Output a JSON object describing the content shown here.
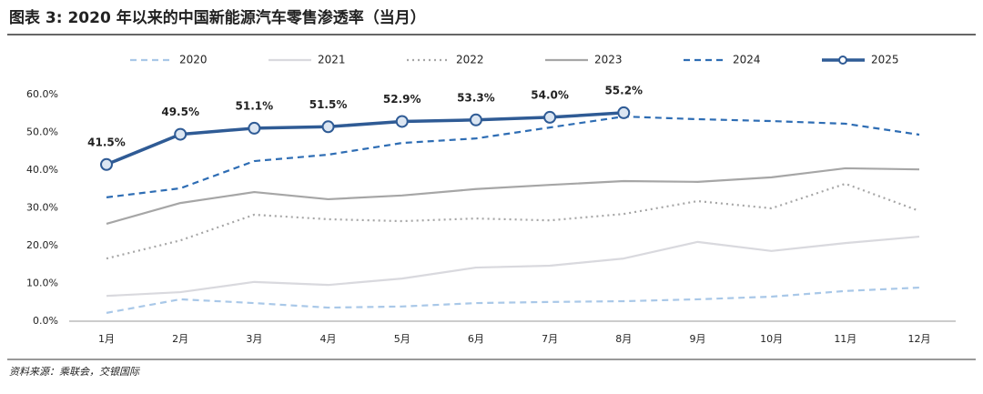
{
  "chart_data": {
    "type": "line",
    "title": "图表 3: 2020 年以来的中国新能源汽车零售渗透率（当月）",
    "source": "资料来源：乘联会，交银国际",
    "categories": [
      "1月",
      "2月",
      "3月",
      "4月",
      "5月",
      "6月",
      "7月",
      "8月",
      "9月",
      "10月",
      "11月",
      "12月"
    ],
    "ylim": [
      0,
      60
    ],
    "yticks": [
      {
        "value": 0,
        "label": "0.0%"
      },
      {
        "value": 10,
        "label": "10.0%"
      },
      {
        "value": 20,
        "label": "20.0%"
      },
      {
        "value": 30,
        "label": "30.0%"
      },
      {
        "value": 40,
        "label": "40.0%"
      },
      {
        "value": 50,
        "label": "50.0%"
      },
      {
        "value": 60,
        "label": "60.0%"
      }
    ],
    "legend": "top",
    "series": [
      {
        "name": "2020",
        "color": "#a9c8e8",
        "dash": "dashed",
        "values": [
          2.2,
          5.8,
          4.8,
          3.6,
          3.9,
          4.8,
          5.1,
          5.3,
          5.8,
          6.5,
          8.0,
          8.9
        ]
      },
      {
        "name": "2021",
        "color": "#d9d9de",
        "dash": "solid",
        "values": [
          6.7,
          7.7,
          10.4,
          9.6,
          11.3,
          14.2,
          14.7,
          16.6,
          21.0,
          18.6,
          20.7,
          22.4
        ]
      },
      {
        "name": "2022",
        "color": "#a6a6a6",
        "dash": "dotted",
        "values": [
          16.6,
          21.4,
          28.2,
          27.0,
          26.5,
          27.2,
          26.7,
          28.4,
          31.8,
          29.9,
          36.4,
          29.2
        ]
      },
      {
        "name": "2023",
        "color": "#a6a6a6",
        "dash": "solid",
        "values": [
          25.8,
          31.3,
          34.2,
          32.3,
          33.3,
          35.0,
          36.1,
          37.1,
          36.9,
          38.1,
          40.5,
          40.2
        ]
      },
      {
        "name": "2024",
        "color": "#2e6db4",
        "dash": "dashed",
        "values": [
          32.8,
          35.2,
          42.4,
          44.1,
          47.2,
          48.4,
          51.3,
          54.2,
          53.5,
          53.0,
          52.3,
          49.4
        ]
      },
      {
        "name": "2025",
        "color": "#2f5b95",
        "dash": "solid",
        "marker": true,
        "values": [
          41.5,
          49.5,
          51.1,
          51.5,
          52.9,
          53.3,
          54.0,
          55.2,
          null,
          null,
          null,
          null
        ],
        "value_labels": [
          "41.5%",
          "49.5%",
          "51.1%",
          "51.5%",
          "52.9%",
          "53.3%",
          "54.0%",
          "55.2%",
          null,
          null,
          null,
          null
        ]
      }
    ]
  }
}
